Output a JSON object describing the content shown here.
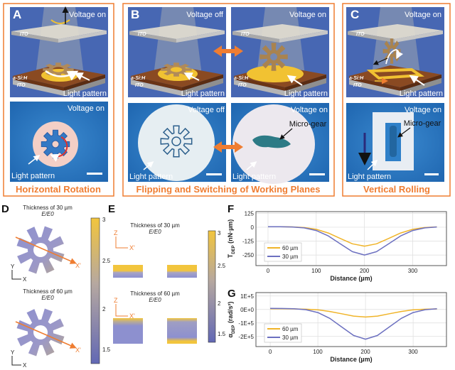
{
  "colors": {
    "accent_orange": "#ef7d31",
    "scene_blue": "#4767b3",
    "micro_blue": "#2f7bc4",
    "series_60": "#f0b429",
    "series_30": "#6c70c0"
  },
  "panels": {
    "A": {
      "letter": "A",
      "top_voltage": "Voltage on",
      "bottom_voltage": "Voltage on",
      "ito_top": "ITO",
      "asi": "a-Si:H",
      "ito_bottom": "ITO",
      "light_top": "Light pattern",
      "light_bottom": "Light pattern",
      "caption": "Horizontal Rotation"
    },
    "B": {
      "letter": "B",
      "left_top_voltage": "Voltage off",
      "right_top_voltage": "Voltage on",
      "left_bottom_voltage": "Voltage off",
      "right_bottom_voltage": "Voltage on",
      "ito_top": "ITO",
      "asi": "a-Si:H",
      "ito_bottom": "ITO",
      "light": "Light pattern",
      "micro_gear": "Micro-gear",
      "caption": "Flipping and Switching of Working Planes"
    },
    "C": {
      "letter": "C",
      "top_voltage": "Voltage on",
      "bottom_voltage": "Voltage on",
      "ito_top": "ITO",
      "asi": "a-Si:H",
      "ito_bottom": "ITO",
      "light_top": "Light pattern",
      "light_bottom": "Light pattern",
      "micro_gear": "Micro-gear",
      "caption": "Vertical Rolling"
    }
  },
  "D": {
    "letter": "D",
    "title_30": "Thickness of 30 µm",
    "title_60": "Thickness of 60 µm",
    "subtitle": "E/E0",
    "axis_y": "Y",
    "axis_x": "X",
    "cut_label": "X'",
    "colorbar_ticks": [
      "3",
      "2.5",
      "2",
      "1.5"
    ]
  },
  "E": {
    "letter": "E",
    "title_30": "Thickness of 30 µm",
    "title_60": "Thickness of 60 µm",
    "subtitle": "E/E0",
    "axis_z": "Z",
    "axis_x": "X'",
    "colorbar_ticks": [
      "3",
      "2.5",
      "2",
      "1.5"
    ]
  },
  "chart_data": [
    {
      "panel": "F",
      "type": "line",
      "xlabel": "Distance (µm)",
      "ylabel": "T_DEP (nN·µm)",
      "xticks": [
        "0",
        "100",
        "200",
        "300"
      ],
      "yticks": [
        "125",
        "0",
        "-125",
        "-250"
      ],
      "xlim": [
        -25,
        370
      ],
      "ylim": [
        -345,
        140
      ],
      "grid": true,
      "legend": "bottom-left",
      "x": [
        0,
        25,
        50,
        75,
        100,
        125,
        150,
        175,
        200,
        225,
        250,
        275,
        300,
        325,
        350
      ],
      "series": [
        {
          "name": "60 µm",
          "color": "#f0b429",
          "values": [
            5,
            5,
            3,
            -3,
            -19,
            -52,
            -101,
            -149,
            -170,
            -149,
            -101,
            -52,
            -19,
            -3,
            3
          ]
        },
        {
          "name": "30 µm",
          "color": "#6c70c0",
          "values": [
            5,
            4,
            2,
            -6,
            -30,
            -78,
            -150,
            -220,
            -250,
            -220,
            -150,
            -78,
            -30,
            -6,
            2
          ]
        }
      ]
    },
    {
      "panel": "G",
      "type": "line",
      "xlabel": "Distance (µm)",
      "ylabel": "α_DEP (rad/s²)",
      "xticks": [
        "0",
        "100",
        "200",
        "300"
      ],
      "yticks": [
        "1E+5",
        "0E+0",
        "-1E+5",
        "-2E+5"
      ],
      "xlim": [
        -30,
        370
      ],
      "ylim": [
        -275000,
        125000
      ],
      "grid": true,
      "legend": "bottom-left",
      "x": [
        0,
        25,
        50,
        75,
        100,
        125,
        150,
        175,
        200,
        225,
        250,
        275,
        300,
        325,
        350
      ],
      "series": [
        {
          "name": "60 µm",
          "color": "#f0b429",
          "values": [
            5000,
            5000,
            4000,
            2000,
            -3000,
            -15000,
            -32000,
            -49000,
            -56000,
            -49000,
            -32000,
            -15000,
            -3000,
            2000,
            4000
          ]
        },
        {
          "name": "30 µm",
          "color": "#6c70c0",
          "values": [
            8000,
            7000,
            5000,
            -2000,
            -23000,
            -66000,
            -130000,
            -193000,
            -220000,
            -193000,
            -130000,
            -66000,
            -23000,
            -2000,
            5000
          ]
        }
      ]
    }
  ]
}
